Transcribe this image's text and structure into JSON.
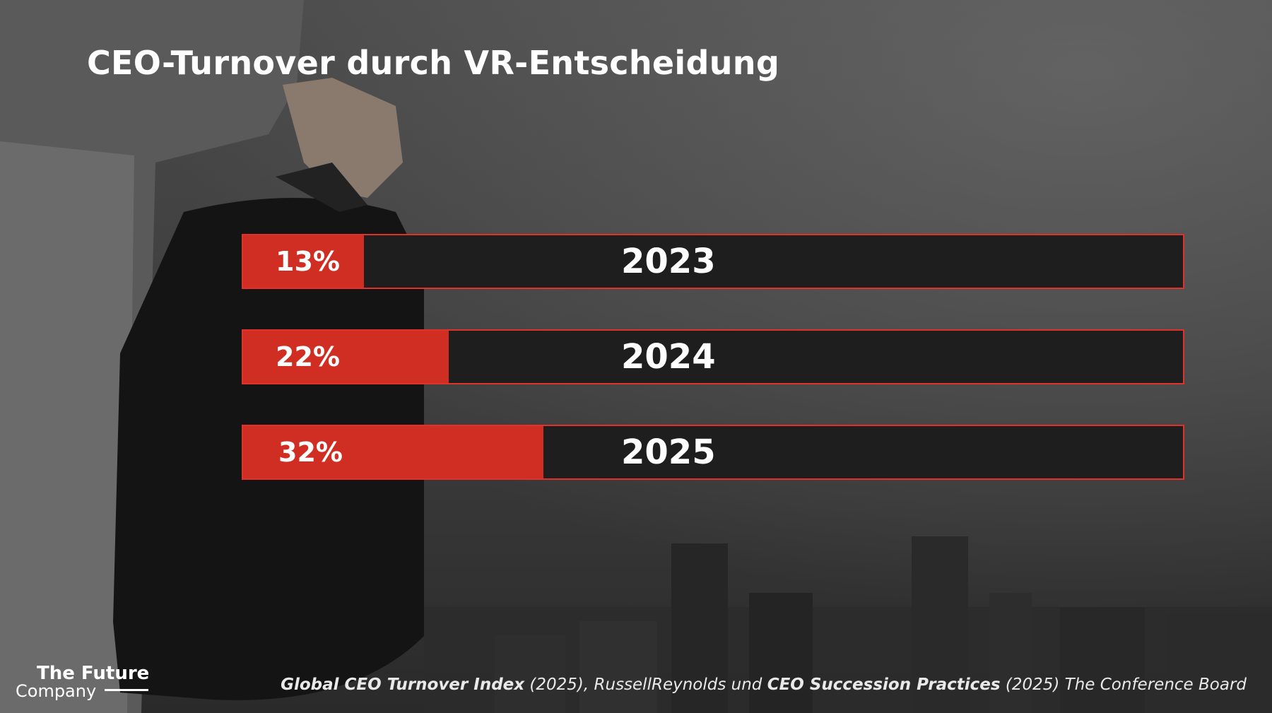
{
  "slide": {
    "title": "CEO-Turnover durch VR-Entscheidung"
  },
  "chart_data": {
    "type": "bar",
    "orientation": "horizontal",
    "categories": [
      "2023",
      "2024",
      "2025"
    ],
    "values": [
      13,
      22,
      32
    ],
    "value_labels": [
      "13%",
      "22%",
      "32%"
    ],
    "unit": "%",
    "xlim": [
      0,
      100
    ],
    "title": "CEO-Turnover durch VR-Entscheidung",
    "colors": {
      "fill": "#d12e23",
      "track": "#1f1e1e",
      "border": "#e0322a"
    }
  },
  "logo": {
    "line1": "The Future",
    "line2": "Company"
  },
  "source": {
    "part1_bold": "Global CEO Turnover Index",
    "part2": " (2025), RussellReynolds und ",
    "part3_bold": "CEO Succession Practices",
    "part4": " (2025) The Conference Board"
  }
}
